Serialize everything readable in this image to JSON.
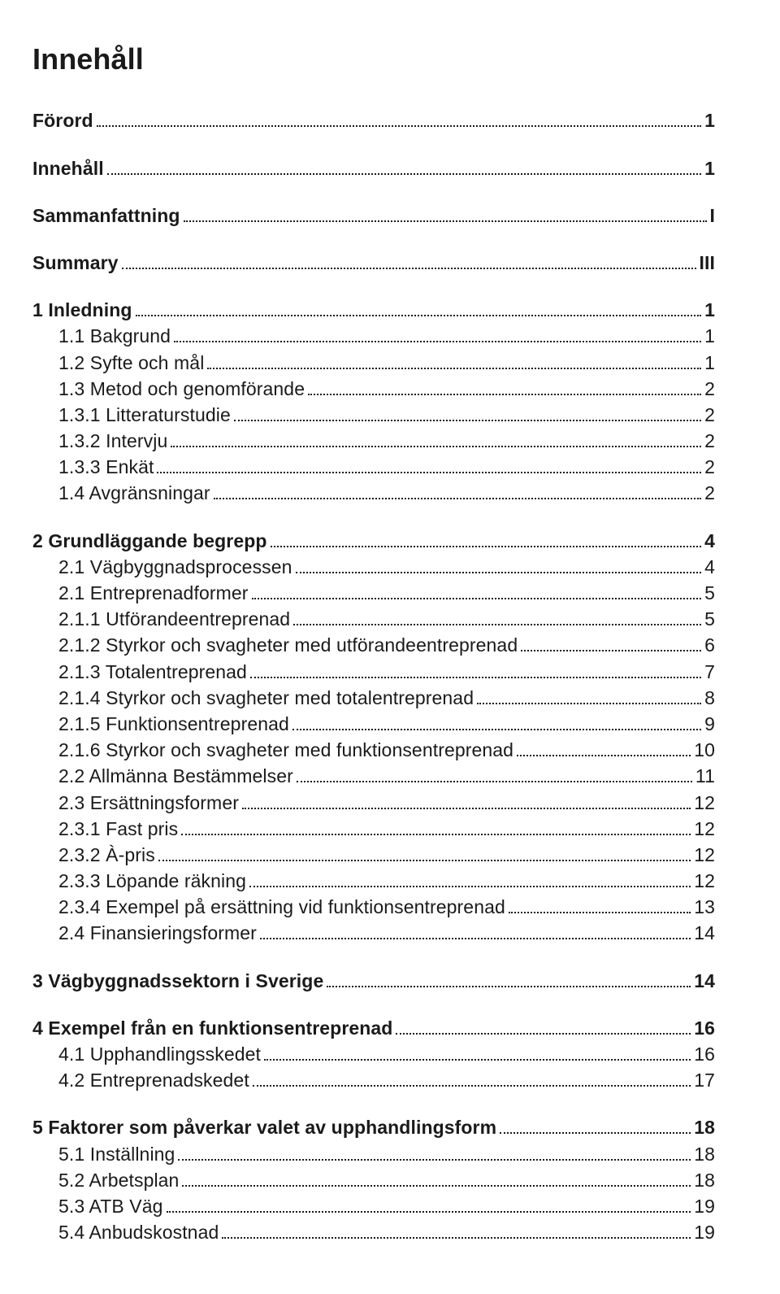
{
  "title": "Innehåll",
  "toc": [
    {
      "type": "group",
      "items": [
        {
          "label": "Förord",
          "page": "1",
          "bold": true,
          "indent": false
        }
      ]
    },
    {
      "type": "group",
      "items": [
        {
          "label": "Innehåll",
          "page": "1",
          "bold": true,
          "indent": false
        }
      ]
    },
    {
      "type": "group",
      "items": [
        {
          "label": "Sammanfattning",
          "page": "I",
          "bold": true,
          "indent": false
        }
      ]
    },
    {
      "type": "group",
      "items": [
        {
          "label": "Summary",
          "page": "III",
          "bold": true,
          "indent": false
        }
      ]
    },
    {
      "type": "group",
      "items": [
        {
          "label": "1 Inledning",
          "page": "1",
          "bold": true,
          "indent": false
        },
        {
          "label": "1.1 Bakgrund",
          "page": "1",
          "bold": false,
          "indent": true
        },
        {
          "label": "1.2 Syfte och mål",
          "page": "1",
          "bold": false,
          "indent": true
        },
        {
          "label": "1.3 Metod och genomförande",
          "page": "2",
          "bold": false,
          "indent": true
        },
        {
          "label": "1.3.1 Litteraturstudie",
          "page": "2",
          "bold": false,
          "indent": true
        },
        {
          "label": "1.3.2 Intervju",
          "page": "2",
          "bold": false,
          "indent": true
        },
        {
          "label": "1.3.3 Enkät",
          "page": "2",
          "bold": false,
          "indent": true
        },
        {
          "label": "1.4 Avgränsningar",
          "page": "2",
          "bold": false,
          "indent": true
        }
      ]
    },
    {
      "type": "group",
      "items": [
        {
          "label": "2 Grundläggande begrepp",
          "page": "4",
          "bold": true,
          "indent": false
        },
        {
          "label": "2.1 Vägbyggnadsprocessen",
          "page": "4",
          "bold": false,
          "indent": true
        },
        {
          "label": "2.1 Entreprenadformer",
          "page": "5",
          "bold": false,
          "indent": true
        },
        {
          "label": "2.1.1 Utförandeentreprenad",
          "page": "5",
          "bold": false,
          "indent": true
        },
        {
          "label": "2.1.2 Styrkor och svagheter med utförandeentreprenad",
          "page": "6",
          "bold": false,
          "indent": true
        },
        {
          "label": "2.1.3 Totalentreprenad",
          "page": "7",
          "bold": false,
          "indent": true
        },
        {
          "label": "2.1.4 Styrkor och svagheter med totalentreprenad",
          "page": "8",
          "bold": false,
          "indent": true
        },
        {
          "label": "2.1.5 Funktionsentreprenad",
          "page": "9",
          "bold": false,
          "indent": true
        },
        {
          "label": "2.1.6 Styrkor och svagheter med funktionsentreprenad",
          "page": "10",
          "bold": false,
          "indent": true
        },
        {
          "label": "2.2 Allmänna Bestämmelser",
          "page": "11",
          "bold": false,
          "indent": true
        },
        {
          "label": "2.3 Ersättningsformer",
          "page": "12",
          "bold": false,
          "indent": true
        },
        {
          "label": "2.3.1 Fast pris",
          "page": "12",
          "bold": false,
          "indent": true
        },
        {
          "label": "2.3.2 À-pris",
          "page": "12",
          "bold": false,
          "indent": true
        },
        {
          "label": "2.3.3 Löpande räkning",
          "page": "12",
          "bold": false,
          "indent": true
        },
        {
          "label": "2.3.4 Exempel på ersättning vid funktionsentreprenad",
          "page": "13",
          "bold": false,
          "indent": true
        },
        {
          "label": "2.4 Finansieringsformer",
          "page": "14",
          "bold": false,
          "indent": true
        }
      ]
    },
    {
      "type": "group",
      "items": [
        {
          "label": "3 Vägbyggnadssektorn i Sverige",
          "page": "14",
          "bold": true,
          "indent": false
        }
      ]
    },
    {
      "type": "group",
      "items": [
        {
          "label": "4 Exempel från en funktionsentreprenad",
          "page": "16",
          "bold": true,
          "indent": false
        },
        {
          "label": "4.1 Upphandlingsskedet",
          "page": "16",
          "bold": false,
          "indent": true
        },
        {
          "label": "4.2 Entreprenadskedet",
          "page": "17",
          "bold": false,
          "indent": true
        }
      ]
    },
    {
      "type": "group",
      "items": [
        {
          "label": "5 Faktorer som påverkar valet av upphandlingsform",
          "page": "18",
          "bold": true,
          "indent": false
        },
        {
          "label": "5.1 Inställning",
          "page": "18",
          "bold": false,
          "indent": true
        },
        {
          "label": "5.2 Arbetsplan",
          "page": "18",
          "bold": false,
          "indent": true
        },
        {
          "label": "5.3 ATB Väg",
          "page": "19",
          "bold": false,
          "indent": true
        },
        {
          "label": "5.4 Anbudskostnad",
          "page": "19",
          "bold": false,
          "indent": true
        }
      ]
    }
  ]
}
